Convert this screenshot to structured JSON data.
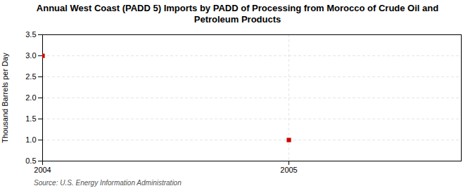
{
  "chart_data": {
    "type": "scatter",
    "title": "Annual West Coast (PADD 5) Imports by PADD of Processing from Morocco of Crude Oil and\nPetroleum Products",
    "ylabel": "Thousand Barrels per Day",
    "source": "Source: U.S. Energy Information Administration",
    "x": [
      2004,
      2005
    ],
    "values": [
      3.0,
      1.0
    ],
    "color": "#cc0000",
    "marker": "square",
    "xlim": [
      2004,
      2005.7
    ],
    "xticks": [
      2004,
      2005
    ],
    "ylim": [
      0.5,
      3.5
    ],
    "yticks": [
      0.5,
      {
        "value": 1.0,
        "label": "1.0"
      },
      1.5,
      {
        "value": 2.0,
        "label": "2.0"
      },
      2.5,
      {
        "value": 3.0,
        "label": "3.0"
      },
      3.5
    ],
    "grid": true
  }
}
